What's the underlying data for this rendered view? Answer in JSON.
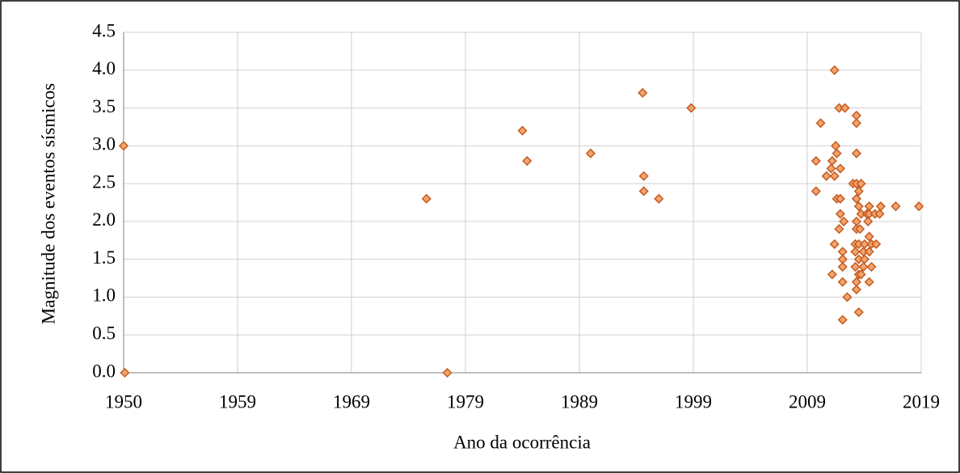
{
  "chart_data": {
    "type": "scatter",
    "x_label": "Ano da ocorrência",
    "y_label": "Magnitude  dos eventos sísmicos",
    "color": "#f2a46e",
    "edge_color": "#c55a1e",
    "grid": true,
    "xlim": [
      1950,
      2019
    ],
    "ylim": [
      0,
      4.5
    ],
    "xticks": [
      1950,
      {
        "value": 1959.86,
        "label": "1959"
      },
      {
        "value": 1969.71,
        "label": "1969"
      },
      {
        "value": 1979.57,
        "label": "1979"
      },
      {
        "value": 1989.43,
        "label": "1989"
      },
      {
        "value": 1999.29,
        "label": "1999"
      },
      {
        "value": 2009.14,
        "label": "2009"
      },
      2019
    ],
    "yticks": [
      {
        "value": 0,
        "label": "0.0"
      },
      0.5,
      {
        "value": 1,
        "label": "1.0"
      },
      1.5,
      {
        "value": 2,
        "label": "2.0"
      },
      2.5,
      {
        "value": 3,
        "label": "3.0"
      },
      3.5,
      {
        "value": 4,
        "label": "4.0"
      },
      4.5
    ],
    "x": [
      1950.0,
      1950.1,
      1976.2,
      1978.0,
      1984.5,
      1984.9,
      1990.4,
      1994.9,
      1995.0,
      1995.0,
      1996.3,
      1999.1,
      2009.9,
      2009.9,
      2010.3,
      2011.5,
      2010.8,
      2011.2,
      2011.3,
      2011.6,
      2011.7,
      2011.5,
      2011.7,
      2012.0,
      2012.0,
      2011.9,
      2012.4,
      2011.5,
      2011.3,
      2011.9,
      2012.0,
      2012.2,
      2012.3,
      2012.2,
      2012.2,
      2012.2,
      2012.2,
      2012.6,
      2013.4,
      2013.4,
      2013.4,
      2013.1,
      2013.4,
      2013.6,
      2013.4,
      2013.6,
      2013.4,
      2013.4,
      2013.7,
      2013.3,
      2013.6,
      2013.3,
      2013.6,
      2013.3,
      2013.6,
      2013.4,
      2013.4,
      2013.6,
      2013.8,
      2013.8,
      2013.8,
      2014.0,
      2014.0,
      2014.1,
      2014.1,
      2014.3,
      2014.4,
      2014.5,
      2014.5,
      2014.5,
      2014.7,
      2014.5,
      2014.7,
      2014.5,
      2015.0,
      2015.1,
      2015.4,
      2015.5,
      2016.8,
      2018.8
    ],
    "y": [
      3.0,
      0,
      2.3,
      0,
      3.2,
      2.8,
      2.9,
      3.7,
      2.6,
      2.4,
      2.3,
      3.5,
      2.8,
      2.4,
      3.3,
      4.0,
      2.6,
      2.7,
      2.8,
      3.0,
      2.9,
      2.6,
      2.3,
      2.3,
      2.7,
      3.5,
      3.5,
      1.7,
      1.3,
      1.9,
      2.1,
      1.6,
      2.0,
      1.5,
      1.4,
      1.2,
      0.7,
      1.0,
      3.4,
      3.3,
      2.9,
      2.5,
      2.5,
      2.4,
      2.3,
      2.2,
      2.0,
      1.9,
      1.9,
      1.7,
      1.7,
      1.6,
      1.5,
      1.4,
      1.3,
      1.2,
      1.1,
      0.8,
      2.5,
      2.1,
      1.3,
      1.4,
      1.6,
      1.5,
      1.7,
      2.1,
      2.0,
      2.2,
      1.8,
      1.6,
      1.4,
      1.2,
      1.7,
      2.1,
      2.1,
      1.7,
      2.1,
      2.2,
      2.2,
      2.2
    ]
  }
}
